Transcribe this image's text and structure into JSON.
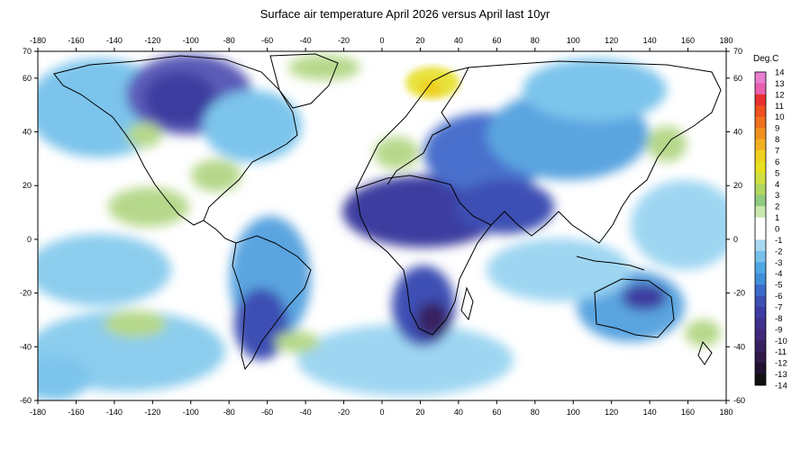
{
  "title": "Surface air temperature April 2026 versus April last 10yr",
  "axes": {
    "lon_ticks": [
      "-180",
      "-160",
      "-140",
      "-120",
      "-100",
      "-80",
      "-60",
      "-40",
      "-20",
      "0",
      "20",
      "40",
      "60",
      "80",
      "100",
      "120",
      "140",
      "160",
      "180"
    ],
    "lat_ticks": [
      "70",
      "60",
      "40",
      "20",
      "0",
      "-20",
      "-40",
      "-60"
    ]
  },
  "colorbar": {
    "unit_label": "Deg.C",
    "ticks": [
      "14",
      "13",
      "12",
      "11",
      "10",
      "9",
      "8",
      "7",
      "6",
      "5",
      "4",
      "3",
      "2",
      "1",
      "0",
      "-1",
      "-2",
      "-3",
      "-4",
      "-5",
      "-6",
      "-7",
      "-8",
      "-9",
      "-10",
      "-11",
      "-12",
      "-13",
      "-14"
    ],
    "colors": [
      "#e87fd0",
      "#e85fb0",
      "#e83030",
      "#ee5020",
      "#f07020",
      "#f09020",
      "#f2b020",
      "#f0d020",
      "#e6e020",
      "#d0e040",
      "#b0d860",
      "#90cc80",
      "#c8e8b0",
      "#ffffff",
      "#ffffff",
      "#a8d8f0",
      "#78c0ec",
      "#50a8e4",
      "#4090d8",
      "#3c6cc8",
      "#3c50b4",
      "#3c3ca0",
      "#40308c",
      "#402878",
      "#382060",
      "#301848",
      "#201030",
      "#101010"
    ]
  },
  "colors": {
    "warm_anomaly": "#e8e23c",
    "mild_warm": "#b6d88a",
    "neutral": "#ffffff",
    "cool": "#7cc4ec",
    "strong_cool": "#3c3ca0",
    "coastline": "#000000"
  }
}
